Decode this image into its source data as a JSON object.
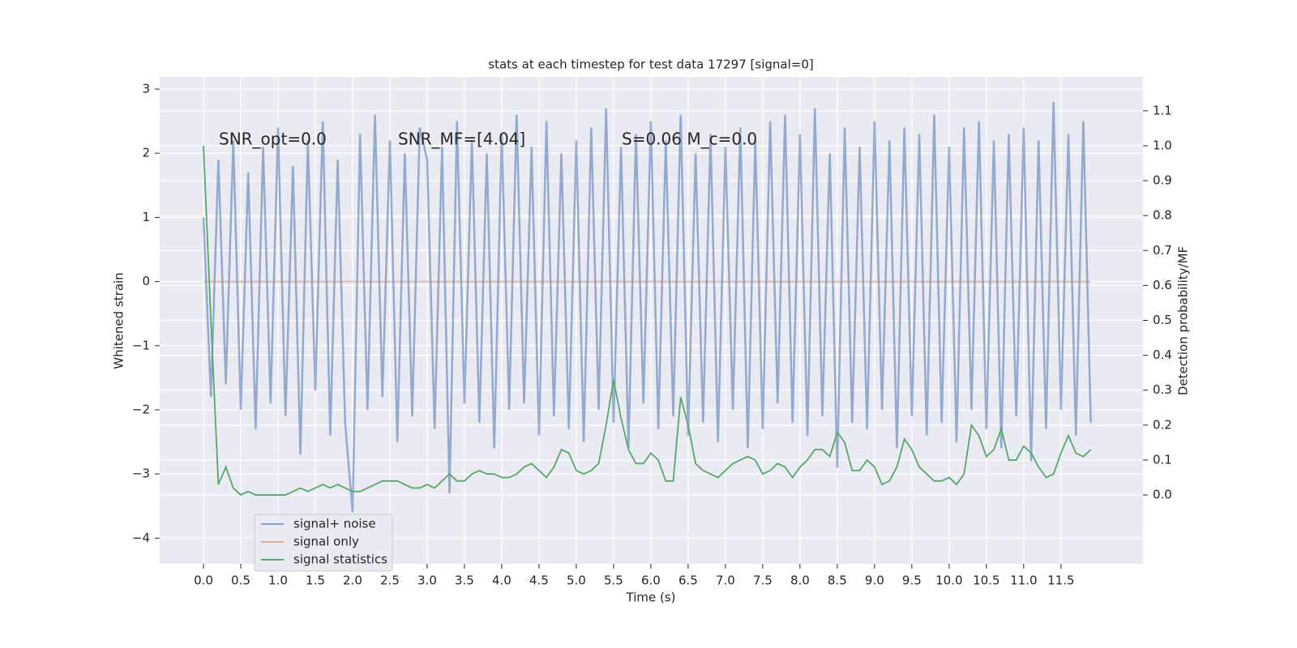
{
  "chart_data": {
    "type": "line",
    "title": "stats at each timestep for test data 17297 [signal=0]",
    "xlabel": "Time (s)",
    "ylabel": "Whitened strain",
    "y2label": "Detection probability/MF",
    "annotations": [
      "SNR_opt=0.0",
      "SNR_MF=[4.04]",
      "S=0.06   M_c=0.0"
    ],
    "x": [
      0,
      0.1,
      0.2,
      0.3,
      0.4,
      0.5,
      0.6,
      0.7,
      0.8,
      0.9,
      1.0,
      1.1,
      1.2,
      1.3,
      1.4,
      1.5,
      1.6,
      1.7,
      1.8,
      1.9,
      2.0,
      2.1,
      2.2,
      2.3,
      2.4,
      2.5,
      2.6,
      2.7,
      2.8,
      2.9,
      3.0,
      3.1,
      3.2,
      3.3,
      3.4,
      3.5,
      3.6,
      3.7,
      3.8,
      3.9,
      4.0,
      4.1,
      4.2,
      4.3,
      4.4,
      4.5,
      4.6,
      4.7,
      4.8,
      4.9,
      5.0,
      5.1,
      5.2,
      5.3,
      5.4,
      5.5,
      5.6,
      5.7,
      5.8,
      5.9,
      6.0,
      6.1,
      6.2,
      6.3,
      6.4,
      6.5,
      6.6,
      6.7,
      6.8,
      6.9,
      7.0,
      7.1,
      7.2,
      7.3,
      7.4,
      7.5,
      7.6,
      7.7,
      7.8,
      7.9,
      8.0,
      8.1,
      8.2,
      8.3,
      8.4,
      8.5,
      8.6,
      8.7,
      8.8,
      8.9,
      9.0,
      9.1,
      9.2,
      9.3,
      9.4,
      9.5,
      9.6,
      9.7,
      9.8,
      9.9,
      10.0,
      10.1,
      10.2,
      10.3,
      10.4,
      10.5,
      10.6,
      10.7,
      10.8,
      10.9,
      11.0,
      11.1,
      11.2,
      11.3,
      11.4,
      11.5,
      11.6,
      11.7,
      11.8,
      11.9
    ],
    "series": [
      {
        "name": "signal+ noise",
        "color": "#4c72b0",
        "values": [
          1.0,
          -1.8,
          1.9,
          -1.6,
          2.2,
          -2.0,
          1.7,
          -2.3,
          2.1,
          -1.9,
          2.4,
          -2.1,
          1.8,
          -2.7,
          2.2,
          -1.7,
          2.5,
          -2.4,
          1.9,
          -2.2,
          -3.6,
          2.3,
          -2.0,
          2.6,
          -1.8,
          2.2,
          -2.5,
          2.0,
          -2.1,
          2.4,
          1.9,
          -2.3,
          2.1,
          -3.3,
          2.5,
          -1.9,
          2.2,
          -2.2,
          2.0,
          -2.6,
          2.3,
          -2.0,
          2.6,
          -1.9,
          2.1,
          -2.4,
          2.5,
          -2.1,
          2.0,
          -2.3,
          2.2,
          -2.5,
          2.4,
          -2.0,
          2.7,
          -2.2,
          2.1,
          -2.6,
          2.3,
          -1.9,
          2.5,
          -2.3,
          2.2,
          -2.1,
          2.6,
          -2.4,
          2.0,
          -2.2,
          2.3,
          -2.5,
          2.1,
          -2.0,
          2.4,
          -2.6,
          2.2,
          -2.3,
          2.5,
          -1.9,
          2.6,
          -2.2,
          2.3,
          -2.4,
          2.7,
          -2.1,
          2.0,
          -2.9,
          2.4,
          -2.2,
          2.1,
          -2.3,
          2.5,
          -2.0,
          2.2,
          -2.6,
          2.4,
          -2.1,
          2.3,
          -2.4,
          2.6,
          -2.2,
          2.1,
          -2.5,
          2.4,
          -2.0,
          2.5,
          -2.3,
          2.2,
          -2.6,
          2.3,
          -2.1,
          2.4,
          -2.8,
          2.2,
          -2.3,
          2.8,
          -2.0,
          2.3,
          -2.4,
          2.5,
          -2.2
        ]
      },
      {
        "name": "signal only",
        "color": "#dd8452",
        "values": [
          0,
          0,
          0,
          0,
          0,
          0,
          0,
          0,
          0,
          0,
          0,
          0,
          0,
          0,
          0,
          0,
          0,
          0,
          0,
          0,
          0,
          0,
          0,
          0,
          0,
          0,
          0,
          0,
          0,
          0,
          0,
          0,
          0,
          0,
          0,
          0,
          0,
          0,
          0,
          0,
          0,
          0,
          0,
          0,
          0,
          0,
          0,
          0,
          0,
          0,
          0,
          0,
          0,
          0,
          0,
          0,
          0,
          0,
          0,
          0,
          0,
          0,
          0,
          0,
          0,
          0,
          0,
          0,
          0,
          0,
          0,
          0,
          0,
          0,
          0,
          0,
          0,
          0,
          0,
          0,
          0,
          0,
          0,
          0,
          0,
          0,
          0,
          0,
          0,
          0,
          0,
          0,
          0,
          0,
          0,
          0,
          0,
          0,
          0,
          0,
          0,
          0,
          0,
          0,
          0,
          0,
          0,
          0,
          0,
          0,
          0,
          0,
          0,
          0,
          0,
          0,
          0,
          0,
          0,
          0
        ]
      },
      {
        "name": "signal statistics",
        "color": "#55a868",
        "axis": "y2",
        "values": [
          1.0,
          0.5,
          0.03,
          0.08,
          0.02,
          0.0,
          0.01,
          0.0,
          0.0,
          0.0,
          0.0,
          0.0,
          0.01,
          0.02,
          0.01,
          0.02,
          0.03,
          0.02,
          0.03,
          0.02,
          0.01,
          0.01,
          0.02,
          0.03,
          0.04,
          0.04,
          0.04,
          0.03,
          0.02,
          0.02,
          0.03,
          0.02,
          0.04,
          0.06,
          0.04,
          0.04,
          0.06,
          0.07,
          0.06,
          0.06,
          0.05,
          0.05,
          0.06,
          0.08,
          0.09,
          0.07,
          0.05,
          0.08,
          0.13,
          0.12,
          0.07,
          0.06,
          0.07,
          0.09,
          0.2,
          0.33,
          0.22,
          0.13,
          0.09,
          0.09,
          0.12,
          0.1,
          0.04,
          0.04,
          0.28,
          0.2,
          0.09,
          0.07,
          0.06,
          0.05,
          0.07,
          0.09,
          0.1,
          0.11,
          0.1,
          0.06,
          0.07,
          0.09,
          0.08,
          0.05,
          0.08,
          0.1,
          0.13,
          0.13,
          0.11,
          0.18,
          0.15,
          0.07,
          0.07,
          0.1,
          0.08,
          0.03,
          0.04,
          0.08,
          0.16,
          0.13,
          0.08,
          0.06,
          0.04,
          0.04,
          0.05,
          0.03,
          0.06,
          0.2,
          0.17,
          0.11,
          0.13,
          0.19,
          0.1,
          0.1,
          0.14,
          0.12,
          0.08,
          0.05,
          0.06,
          0.12,
          0.17,
          0.12,
          0.11,
          0.13
        ]
      }
    ],
    "xlim": [
      -0.587,
      12.6
    ],
    "xticks": [
      {
        "value": 0,
        "label": "0.0"
      },
      {
        "value": 0.5,
        "label": "0.5"
      },
      {
        "value": 1,
        "label": "1.0"
      },
      {
        "value": 1.5,
        "label": "1.5"
      },
      {
        "value": 2,
        "label": "2.0"
      },
      {
        "value": 2.5,
        "label": "2.5"
      },
      {
        "value": 3,
        "label": "3.0"
      },
      {
        "value": 3.5,
        "label": "3.5"
      },
      {
        "value": 4,
        "label": "4.0"
      },
      {
        "value": 4.5,
        "label": "4.5"
      },
      {
        "value": 5,
        "label": "5.0"
      },
      {
        "value": 5.5,
        "label": "5.5"
      },
      {
        "value": 6,
        "label": "6.0"
      },
      {
        "value": 6.5,
        "label": "6.5"
      },
      {
        "value": 7,
        "label": "7.0"
      },
      {
        "value": 7.5,
        "label": "7.5"
      },
      {
        "value": 8,
        "label": "8.0"
      },
      {
        "value": 8.5,
        "label": "8.5"
      },
      {
        "value": 9,
        "label": "9.0"
      },
      {
        "value": 9.5,
        "label": "9.5"
      },
      {
        "value": 10,
        "label": "10.0"
      },
      {
        "value": 10.5,
        "label": "10.5"
      },
      {
        "value": 11,
        "label": "11.0"
      },
      {
        "value": 11.5,
        "label": "11.5"
      }
    ],
    "ylim": [
      -4.4,
      3.19
    ],
    "yticks": [
      {
        "value": -4,
        "label": "−4"
      },
      {
        "value": -3,
        "label": "−3"
      },
      {
        "value": -2,
        "label": "−2"
      },
      {
        "value": -1,
        "label": "−1"
      },
      0,
      1,
      2,
      3
    ],
    "y2lim": [
      -0.197,
      1.197
    ],
    "y2ticks": [
      {
        "value": 0,
        "label": "0.0"
      },
      {
        "value": 0.1,
        "label": "0.1"
      },
      {
        "value": 0.2,
        "label": "0.2"
      },
      {
        "value": 0.3,
        "label": "0.3"
      },
      {
        "value": 0.4,
        "label": "0.4"
      },
      {
        "value": 0.5,
        "label": "0.5"
      },
      {
        "value": 0.6,
        "label": "0.6"
      },
      {
        "value": 0.7,
        "label": "0.7"
      },
      {
        "value": 0.8,
        "label": "0.8"
      },
      {
        "value": 0.9,
        "label": "0.9"
      },
      {
        "value": 1,
        "label": "1.0"
      },
      {
        "value": 1.1,
        "label": "1.1"
      }
    ],
    "grid": true,
    "legend": "lower left"
  }
}
